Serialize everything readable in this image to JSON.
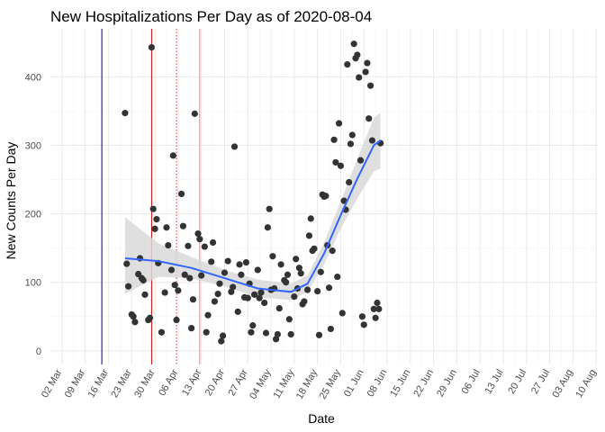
{
  "chart_data": {
    "type": "scatter",
    "title": "New Hospitalizations Per Day as of 2020-08-04",
    "xlabel": "Date",
    "ylabel": "New Counts Per Day",
    "x_range_day": [
      -2.5,
      162.5
    ],
    "ylim": [
      -20,
      470
    ],
    "x_ticks": [
      {
        "day": 1,
        "label": "02 Mar"
      },
      {
        "day": 8,
        "label": "09 Mar"
      },
      {
        "day": 15,
        "label": "16 Mar"
      },
      {
        "day": 22,
        "label": "23 Mar"
      },
      {
        "day": 29,
        "label": "30 Mar"
      },
      {
        "day": 36,
        "label": "06 Apr"
      },
      {
        "day": 43,
        "label": "13 Apr"
      },
      {
        "day": 50,
        "label": "20 Apr"
      },
      {
        "day": 57,
        "label": "27 Apr"
      },
      {
        "day": 64,
        "label": "04 May"
      },
      {
        "day": 71,
        "label": "11 May"
      },
      {
        "day": 78,
        "label": "18 May"
      },
      {
        "day": 85,
        "label": "25 May"
      },
      {
        "day": 92,
        "label": "01 Jun"
      },
      {
        "day": 99,
        "label": "08 Jun"
      },
      {
        "day": 106,
        "label": "15 Jun"
      },
      {
        "day": 113,
        "label": "22 Jun"
      },
      {
        "day": 120,
        "label": "29 Jun"
      },
      {
        "day": 127,
        "label": "06 Jul"
      },
      {
        "day": 134,
        "label": "13 Jul"
      },
      {
        "day": 141,
        "label": "20 Jul"
      },
      {
        "day": 148,
        "label": "27 Jul"
      },
      {
        "day": 155,
        "label": "03 Aug"
      },
      {
        "day": 162,
        "label": "10 Aug"
      }
    ],
    "y_ticks": [
      0,
      100,
      200,
      300,
      400
    ],
    "reference_lines": [
      {
        "day": 13,
        "color": "#00008b",
        "style": "solid"
      },
      {
        "day": 28,
        "color": "#cc0000",
        "style": "solid"
      },
      {
        "day": 35.5,
        "color": "#cc3333",
        "style": "dotted"
      },
      {
        "day": 42.5,
        "color": "#e88080",
        "style": "solid"
      }
    ],
    "points": [
      [
        20,
        347
      ],
      [
        20.5,
        127
      ],
      [
        21,
        94
      ],
      [
        22,
        53
      ],
      [
        22.5,
        50
      ],
      [
        23,
        42
      ],
      [
        24,
        112
      ],
      [
        24.5,
        135
      ],
      [
        25,
        106
      ],
      [
        25.5,
        103
      ],
      [
        26,
        82
      ],
      [
        27,
        45
      ],
      [
        27.5,
        48
      ],
      [
        28,
        443
      ],
      [
        28.5,
        207
      ],
      [
        29,
        178
      ],
      [
        29.5,
        192
      ],
      [
        30,
        128
      ],
      [
        31,
        27
      ],
      [
        32,
        85
      ],
      [
        32.5,
        180
      ],
      [
        33,
        154
      ],
      [
        34,
        118
      ],
      [
        34.5,
        285
      ],
      [
        35,
        96
      ],
      [
        35.5,
        45
      ],
      [
        36,
        88
      ],
      [
        37,
        229
      ],
      [
        37.5,
        182
      ],
      [
        38,
        111
      ],
      [
        39,
        153
      ],
      [
        39.5,
        106
      ],
      [
        40,
        33
      ],
      [
        40.5,
        75
      ],
      [
        41,
        346
      ],
      [
        42,
        171
      ],
      [
        42.5,
        163
      ],
      [
        43,
        110
      ],
      [
        44,
        152
      ],
      [
        44.5,
        27
      ],
      [
        45,
        52
      ],
      [
        46,
        130
      ],
      [
        46.5,
        158
      ],
      [
        47,
        72
      ],
      [
        48,
        83
      ],
      [
        48.5,
        98
      ],
      [
        49,
        14
      ],
      [
        49.5,
        22
      ],
      [
        50,
        114
      ],
      [
        51,
        131
      ],
      [
        52,
        86
      ],
      [
        52.5,
        93
      ],
      [
        53,
        298
      ],
      [
        54,
        57
      ],
      [
        54.5,
        126
      ],
      [
        55,
        111
      ],
      [
        56,
        78
      ],
      [
        56.5,
        129
      ],
      [
        57,
        77
      ],
      [
        57.5,
        98
      ],
      [
        58,
        27
      ],
      [
        58.5,
        37
      ],
      [
        59,
        82
      ],
      [
        60,
        118
      ],
      [
        60.5,
        77
      ],
      [
        61,
        85
      ],
      [
        62,
        70
      ],
      [
        62.5,
        26
      ],
      [
        63,
        180
      ],
      [
        63.5,
        207
      ],
      [
        64,
        89
      ],
      [
        64.5,
        138
      ],
      [
        65,
        91
      ],
      [
        65.5,
        17
      ],
      [
        66,
        24
      ],
      [
        66.5,
        62
      ],
      [
        67,
        126
      ],
      [
        68,
        103
      ],
      [
        68.5,
        100
      ],
      [
        69,
        111
      ],
      [
        69.5,
        46
      ],
      [
        70,
        24
      ],
      [
        71,
        79
      ],
      [
        71.5,
        134
      ],
      [
        72,
        91
      ],
      [
        72.5,
        121
      ],
      [
        73,
        113
      ],
      [
        73.5,
        68
      ],
      [
        74,
        72
      ],
      [
        75,
        89
      ],
      [
        75.5,
        168
      ],
      [
        76,
        193
      ],
      [
        76.5,
        146
      ],
      [
        77,
        149
      ],
      [
        78,
        87
      ],
      [
        78.5,
        23
      ],
      [
        79,
        115
      ],
      [
        79.5,
        228
      ],
      [
        80,
        225
      ],
      [
        80.5,
        226
      ],
      [
        81,
        154
      ],
      [
        81.5,
        92
      ],
      [
        82,
        32
      ],
      [
        82.5,
        146
      ],
      [
        83,
        308
      ],
      [
        83.5,
        275
      ],
      [
        84,
        108
      ],
      [
        84.5,
        332
      ],
      [
        85,
        270
      ],
      [
        85.5,
        55
      ],
      [
        86,
        219
      ],
      [
        86.5,
        206
      ],
      [
        87,
        418
      ],
      [
        87.5,
        246
      ],
      [
        88,
        302
      ],
      [
        88.5,
        315
      ],
      [
        89,
        448
      ],
      [
        89.5,
        427
      ],
      [
        90,
        432
      ],
      [
        90.5,
        399
      ],
      [
        91,
        278
      ],
      [
        91.5,
        50
      ],
      [
        92,
        38
      ],
      [
        92.5,
        407
      ],
      [
        93,
        420
      ],
      [
        93.5,
        339
      ],
      [
        94,
        387
      ],
      [
        94.5,
        307
      ],
      [
        95,
        61
      ],
      [
        95.5,
        48
      ],
      [
        96,
        70
      ],
      [
        96.5,
        61
      ],
      [
        97,
        303
      ]
    ],
    "smooth_line": {
      "day": [
        20,
        30,
        40,
        50,
        60,
        70,
        75,
        80,
        85,
        90,
        95,
        97
      ],
      "fit": [
        135,
        131,
        121,
        106,
        91,
        86,
        98,
        142,
        198,
        251,
        300,
        307
      ],
      "ci_low": [
        83,
        108,
        106,
        94,
        78,
        74,
        86,
        126,
        178,
        222,
        262,
        266
      ],
      "ci_high": [
        195,
        157,
        137,
        118,
        104,
        98,
        110,
        158,
        218,
        280,
        340,
        348
      ]
    },
    "colors": {
      "points": "#333333",
      "smooth_line": "#3366ff",
      "ci_band": "#d9d9d9",
      "grid_major": "#ebebeb",
      "grid_minor": "#f5f5f5"
    }
  }
}
